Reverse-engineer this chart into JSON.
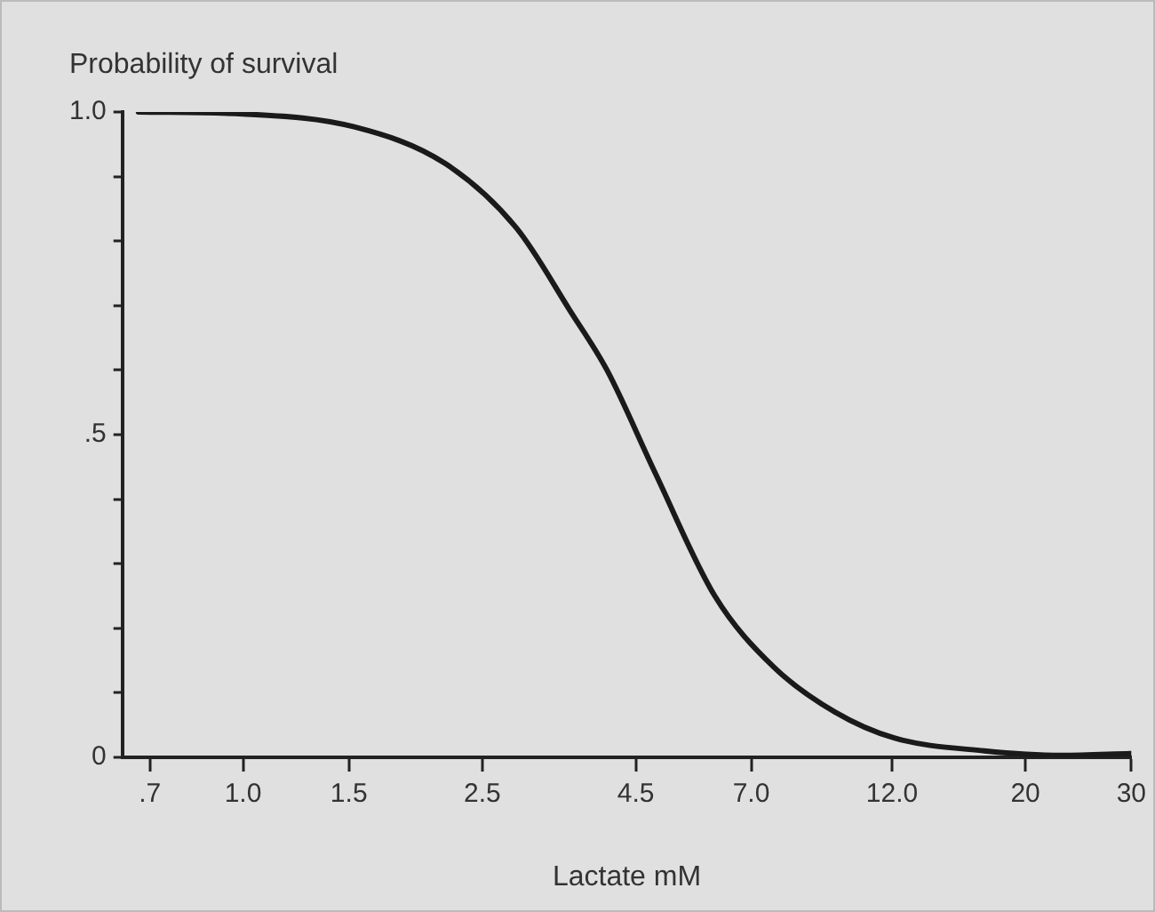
{
  "chart_data": {
    "type": "line",
    "ylabel": "Probability of survival",
    "xlabel": "Lactate mM",
    "log": "x",
    "x": [
      0.67,
      1.0,
      1.53,
      2.17,
      2.85,
      3.51,
      4.03,
      4.85,
      6.09,
      7.63,
      9.65,
      12.1,
      17.1,
      23.0,
      30
    ],
    "series": [
      {
        "color": "#1a1a1a",
        "values": [
          1.0,
          0.997,
          0.977,
          0.92,
          0.82,
          0.69,
          0.6,
          0.44,
          0.25,
          0.14,
          0.07,
          0.03,
          0.01,
          0.003,
          0.006
        ]
      }
    ],
    "xlim": [
      0.63,
      30
    ],
    "xticks": [
      {
        "value": 0.7,
        "label": ".7"
      },
      {
        "value": 1.0,
        "label": "1.0"
      },
      {
        "value": 1.5,
        "label": "1.5"
      },
      {
        "value": 2.5,
        "label": "2.5"
      },
      {
        "value": 4.5,
        "label": "4.5"
      },
      {
        "value": 7.0,
        "label": "7.0"
      },
      {
        "value": 12.0,
        "label": "12.0"
      },
      20,
      30
    ],
    "ylim": [
      0,
      1.0
    ],
    "yticks": [
      0,
      {
        "value": 0.1,
        "label": null
      },
      {
        "value": 0.2,
        "label": null
      },
      {
        "value": 0.3,
        "label": null
      },
      {
        "value": 0.4,
        "label": null
      },
      {
        "value": 0.5,
        "label": ".5"
      },
      {
        "value": 0.6,
        "label": null
      },
      {
        "value": 0.7,
        "label": null
      },
      {
        "value": 0.8,
        "label": null
      },
      {
        "value": 0.9,
        "label": null
      },
      {
        "value": 1.0,
        "label": "1.0"
      }
    ],
    "grid": false,
    "legend": false,
    "marker": "none",
    "line_style": "solid"
  }
}
